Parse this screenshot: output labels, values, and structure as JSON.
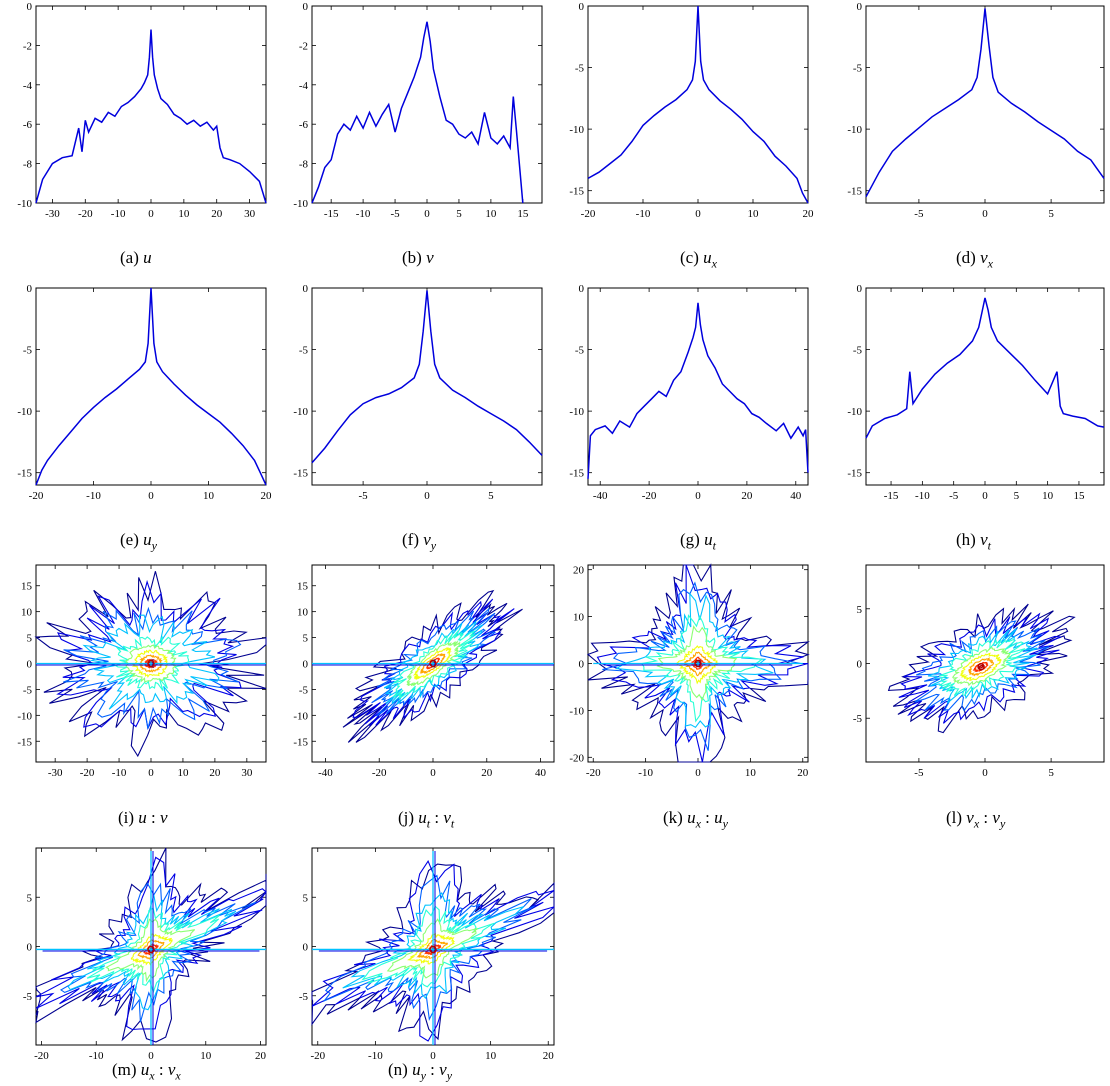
{
  "colors": {
    "line": "#0000dd",
    "contour_levels": [
      "#00008f",
      "#0000e6",
      "#0061ff",
      "#00c2ff",
      "#29ffd6",
      "#8cff73",
      "#f0ff0f",
      "#ffa600",
      "#ff3300",
      "#b30000"
    ]
  },
  "chart_data": [
    {
      "id": "a",
      "type": "line",
      "caption_label": "(a)",
      "caption_sym": "u",
      "caption_sub": "",
      "xlim": [
        -35,
        35
      ],
      "ylim": [
        -10,
        0
      ],
      "xticks": [
        -30,
        -20,
        -10,
        0,
        10,
        20,
        30
      ],
      "yticks": [
        -10,
        -8,
        -6,
        -4,
        -2,
        0
      ],
      "x": [
        -35,
        -33,
        -30,
        -27,
        -24,
        -22,
        -21,
        -20,
        -19,
        -17,
        -15,
        -13,
        -11,
        -9,
        -7,
        -5,
        -3,
        -2,
        -1,
        -0.5,
        0,
        0.5,
        1,
        2,
        3,
        5,
        7,
        9,
        11,
        13,
        15,
        17,
        19,
        20,
        21,
        22,
        24,
        27,
        30,
        33,
        35
      ],
      "y": [
        -10,
        -8.8,
        -8,
        -7.7,
        -7.6,
        -6.2,
        -7.4,
        -5.8,
        -6.4,
        -5.7,
        -5.9,
        -5.4,
        -5.6,
        -5.1,
        -4.9,
        -4.6,
        -4.2,
        -3.9,
        -3.5,
        -2.6,
        -1.2,
        -2.6,
        -3.5,
        -4.2,
        -4.7,
        -5.0,
        -5.5,
        -5.7,
        -6.0,
        -5.8,
        -6.1,
        -5.9,
        -6.3,
        -6.1,
        -7.2,
        -7.7,
        -7.8,
        -8.0,
        -8.4,
        -8.9,
        -10
      ]
    },
    {
      "id": "b",
      "type": "line",
      "caption_label": "(b)",
      "caption_sym": "v",
      "caption_sub": "",
      "xlim": [
        -18,
        18
      ],
      "ylim": [
        -10,
        0
      ],
      "xticks": [
        -15,
        -10,
        -5,
        0,
        5,
        10,
        15
      ],
      "yticks": [
        -10,
        -8,
        -6,
        -4,
        -2,
        0
      ],
      "x": [
        -18,
        -17,
        -16,
        -15,
        -14,
        -13,
        -12,
        -11,
        -10,
        -9,
        -8,
        -7,
        -6,
        -5,
        -4,
        -3,
        -2,
        -1,
        -0.5,
        0,
        0.5,
        1,
        2,
        3,
        4,
        5,
        6,
        7,
        8,
        9,
        10,
        11,
        12,
        13,
        13.5,
        14,
        15
      ],
      "y": [
        -10,
        -9.2,
        -8.2,
        -7.8,
        -6.5,
        -6.0,
        -6.3,
        -5.6,
        -6.2,
        -5.4,
        -6.1,
        -5.5,
        -5.0,
        -6.4,
        -5.2,
        -4.4,
        -3.6,
        -2.6,
        -1.6,
        -0.8,
        -1.8,
        -3.2,
        -4.6,
        -5.8,
        -6.0,
        -6.5,
        -6.7,
        -6.4,
        -7.0,
        -5.4,
        -6.7,
        -7.0,
        -6.6,
        -7.2,
        -4.6,
        -6.3,
        -10
      ]
    },
    {
      "id": "c",
      "type": "line",
      "caption_label": "(c)",
      "caption_sym": "u",
      "caption_sub": "x",
      "xlim": [
        -20,
        20
      ],
      "ylim": [
        -16,
        0
      ],
      "xticks": [
        -20,
        -10,
        0,
        10,
        20
      ],
      "yticks": [
        -15,
        -10,
        -5,
        0
      ],
      "x": [
        -20,
        -18,
        -16,
        -14,
        -12,
        -10,
        -8,
        -6,
        -4,
        -2,
        -1,
        -0.5,
        0,
        0.5,
        1,
        2,
        4,
        6,
        8,
        10,
        12,
        14,
        16,
        18,
        19,
        20
      ],
      "y": [
        -14,
        -13.5,
        -12.8,
        -12.1,
        -11.0,
        -9.7,
        -8.9,
        -8.2,
        -7.6,
        -6.8,
        -6.0,
        -4.5,
        0,
        -4.5,
        -6.0,
        -6.8,
        -7.7,
        -8.4,
        -9.2,
        -10.2,
        -11.0,
        -12.2,
        -13.0,
        -14.0,
        -15.2,
        -16
      ]
    },
    {
      "id": "d",
      "type": "line",
      "caption_label": "(d)",
      "caption_sym": "v",
      "caption_sub": "x",
      "xlim": [
        -9,
        9
      ],
      "ylim": [
        -16,
        0
      ],
      "xticks": [
        -5,
        0,
        5
      ],
      "yticks": [
        -15,
        -10,
        -5,
        0
      ],
      "x": [
        -9,
        -8,
        -7,
        -6,
        -5,
        -4,
        -3,
        -2,
        -1,
        -0.6,
        -0.3,
        0,
        0.3,
        0.6,
        1,
        2,
        3,
        4,
        5,
        6,
        7,
        8,
        9
      ],
      "y": [
        -15.5,
        -13.5,
        -11.8,
        -10.8,
        -9.9,
        -9.0,
        -8.3,
        -7.6,
        -6.8,
        -5.8,
        -3.5,
        -0.2,
        -3.2,
        -5.8,
        -7.0,
        -7.9,
        -8.6,
        -9.4,
        -10.1,
        -10.8,
        -11.8,
        -12.5,
        -14
      ]
    },
    {
      "id": "e",
      "type": "line",
      "caption_label": "(e)",
      "caption_sym": "u",
      "caption_sub": "y",
      "xlim": [
        -20,
        20
      ],
      "ylim": [
        -16,
        0
      ],
      "xticks": [
        -20,
        -10,
        0,
        10,
        20
      ],
      "yticks": [
        -15,
        -10,
        -5,
        0
      ],
      "x": [
        -20,
        -19,
        -18,
        -16,
        -14,
        -12,
        -10,
        -8,
        -6,
        -4,
        -2,
        -1,
        -0.5,
        0,
        0.5,
        1,
        2,
        4,
        6,
        8,
        10,
        12,
        14,
        16,
        18,
        19,
        20
      ],
      "y": [
        -16,
        -14.8,
        -14,
        -12.8,
        -11.7,
        -10.6,
        -9.7,
        -8.9,
        -8.2,
        -7.4,
        -6.6,
        -6.0,
        -4.5,
        0,
        -4.5,
        -6.0,
        -6.8,
        -7.8,
        -8.7,
        -9.5,
        -10.2,
        -10.9,
        -11.8,
        -12.8,
        -14.0,
        -15.0,
        -16
      ]
    },
    {
      "id": "f",
      "type": "line",
      "caption_label": "(f)",
      "caption_sym": "v",
      "caption_sub": "y",
      "xlim": [
        -9,
        9
      ],
      "ylim": [
        -16,
        0
      ],
      "xticks": [
        -5,
        0,
        5
      ],
      "yticks": [
        -15,
        -10,
        -5,
        0
      ],
      "x": [
        -9,
        -8,
        -7,
        -6,
        -5,
        -4,
        -3,
        -2,
        -1,
        -0.6,
        -0.3,
        0,
        0.3,
        0.6,
        1,
        2,
        3,
        4,
        5,
        6,
        7,
        8,
        9
      ],
      "y": [
        -14.2,
        -13.0,
        -11.6,
        -10.3,
        -9.4,
        -8.9,
        -8.6,
        -8.1,
        -7.3,
        -6.2,
        -3.5,
        -0.2,
        -3.5,
        -6.2,
        -7.3,
        -8.3,
        -8.9,
        -9.6,
        -10.2,
        -10.8,
        -11.5,
        -12.5,
        -13.6
      ]
    },
    {
      "id": "g",
      "type": "line",
      "caption_label": "(g)",
      "caption_sym": "u",
      "caption_sub": "t",
      "xlim": [
        -45,
        45
      ],
      "ylim": [
        -16,
        0
      ],
      "xticks": [
        -40,
        -20,
        0,
        20,
        40
      ],
      "yticks": [
        -15,
        -10,
        -5,
        0
      ],
      "x": [
        -45,
        -44,
        -42,
        -38,
        -35,
        -32,
        -28,
        -25,
        -22,
        -19,
        -16,
        -13,
        -10,
        -7,
        -4,
        -2,
        -1,
        0,
        1,
        2,
        4,
        7,
        10,
        13,
        16,
        19,
        22,
        25,
        28,
        32,
        35,
        38,
        41,
        43,
        44,
        45
      ],
      "y": [
        -15.5,
        -12,
        -11.5,
        -11.2,
        -11.8,
        -10.8,
        -11.3,
        -10.2,
        -9.6,
        -9.0,
        -8.4,
        -8.8,
        -7.5,
        -6.8,
        -5.2,
        -4.0,
        -3.2,
        -1.2,
        -3.0,
        -4.2,
        -5.5,
        -6.5,
        -7.8,
        -8.4,
        -9.0,
        -9.4,
        -10.2,
        -10.5,
        -11.0,
        -11.6,
        -11.0,
        -12.2,
        -11.3,
        -12.0,
        -11.5,
        -15
      ]
    },
    {
      "id": "h",
      "type": "line",
      "caption_label": "(h)",
      "caption_sym": "v",
      "caption_sub": "t",
      "xlim": [
        -19,
        19
      ],
      "ylim": [
        -16,
        0
      ],
      "xticks": [
        -15,
        -10,
        -5,
        0,
        5,
        10,
        15
      ],
      "yticks": [
        -15,
        -10,
        -5,
        0
      ],
      "x": [
        -19,
        -18,
        -16,
        -14,
        -12.5,
        -12,
        -11.5,
        -10,
        -8,
        -6,
        -4,
        -2,
        -1,
        -0.5,
        0,
        0.5,
        1,
        2,
        4,
        6,
        8,
        10,
        11.5,
        12,
        12.5,
        14,
        16,
        18,
        19
      ],
      "y": [
        -12.2,
        -11.2,
        -10.6,
        -10.3,
        -9.8,
        -6.8,
        -9.4,
        -8.2,
        -7.0,
        -6.1,
        -5.4,
        -4.3,
        -3.2,
        -2.0,
        -0.8,
        -1.8,
        -3.2,
        -4.3,
        -5.3,
        -6.3,
        -7.5,
        -8.6,
        -6.8,
        -9.6,
        -10.2,
        -10.4,
        -10.6,
        -11.2,
        -11.3
      ]
    },
    {
      "id": "i",
      "type": "contour",
      "caption_label": "(i)",
      "caption_sym": "u",
      "caption_sep": " : ",
      "caption_sym2": "v",
      "caption_sub": "",
      "caption_sub2": "",
      "xlim": [
        -36,
        36
      ],
      "ylim": [
        -19,
        19
      ],
      "xticks": [
        -30,
        -20,
        -10,
        0,
        10,
        20,
        30
      ],
      "yticks": [
        -15,
        -10,
        -5,
        0,
        5,
        10,
        15
      ],
      "center": [
        0,
        0
      ],
      "spread": [
        22,
        10
      ],
      "cross": [
        40,
        0.8
      ],
      "pattern": "blobs"
    },
    {
      "id": "j",
      "type": "contour",
      "caption_label": "(j)",
      "caption_sym": "u",
      "caption_sep": " : ",
      "caption_sym2": "v",
      "caption_sub": "t",
      "caption_sub2": "t",
      "xlim": [
        -45,
        45
      ],
      "ylim": [
        -19,
        19
      ],
      "xticks": [
        -40,
        -20,
        0,
        20,
        40
      ],
      "yticks": [
        -15,
        -10,
        -5,
        0,
        5,
        10,
        15
      ],
      "center": [
        0,
        0
      ],
      "spread": [
        28,
        7
      ],
      "cross": [
        50,
        0.8
      ],
      "tilt": 0.35,
      "pattern": "tilted"
    },
    {
      "id": "k",
      "type": "contour",
      "caption_label": "(k)",
      "caption_sym": "u",
      "caption_sep": " : ",
      "caption_sym2": "u",
      "caption_sub": "x",
      "caption_sub2": "y",
      "xlim": [
        -21,
        21
      ],
      "ylim": [
        -21,
        21
      ],
      "xticks": [
        -20,
        -10,
        0,
        10,
        20
      ],
      "yticks": [
        -20,
        -10,
        0,
        10,
        20
      ],
      "center": [
        0,
        0
      ],
      "spread": [
        12,
        12
      ],
      "cross": [
        20,
        0.8
      ],
      "pattern": "star"
    },
    {
      "id": "l",
      "type": "contour",
      "caption_label": "(l)",
      "caption_sym": "v",
      "caption_sep": " : ",
      "caption_sym2": "v",
      "caption_sub": "x",
      "caption_sub2": "y",
      "xlim": [
        -9,
        9
      ],
      "ylim": [
        -9,
        9
      ],
      "xticks": [
        -5,
        0,
        5
      ],
      "yticks": [
        -5,
        0,
        5
      ],
      "center": [
        -0.3,
        -0.3
      ],
      "spread": [
        6,
        4
      ],
      "cross": [
        0,
        0
      ],
      "tilt": 0.45,
      "pattern": "ellipse"
    },
    {
      "id": "m",
      "type": "contour",
      "caption_label": "(m)",
      "caption_sym": "u",
      "caption_sep": " : ",
      "caption_sym2": "v",
      "caption_sub": "x",
      "caption_sub2": "x",
      "xlim": [
        -21,
        21
      ],
      "ylim": [
        -10,
        10
      ],
      "xticks": [
        -20,
        -10,
        0,
        10,
        20
      ],
      "yticks": [
        -5,
        0,
        5
      ],
      "center": [
        0,
        -0.3
      ],
      "spread": [
        12,
        4.5
      ],
      "cross": [
        22,
        10
      ],
      "tilt": 0.25,
      "pattern": "cross"
    },
    {
      "id": "n",
      "type": "contour",
      "caption_label": "(n)",
      "caption_sym": "u",
      "caption_sep": " : ",
      "caption_sym2": "v",
      "caption_sub": "y",
      "caption_sub2": "y",
      "xlim": [
        -21,
        21
      ],
      "ylim": [
        -10,
        10
      ],
      "xticks": [
        -20,
        -10,
        0,
        10,
        20
      ],
      "yticks": [
        -5,
        0,
        5
      ],
      "center": [
        0,
        -0.3
      ],
      "spread": [
        12,
        4.5
      ],
      "cross": [
        22,
        10
      ],
      "tilt": 0.25,
      "pattern": "cross"
    }
  ]
}
